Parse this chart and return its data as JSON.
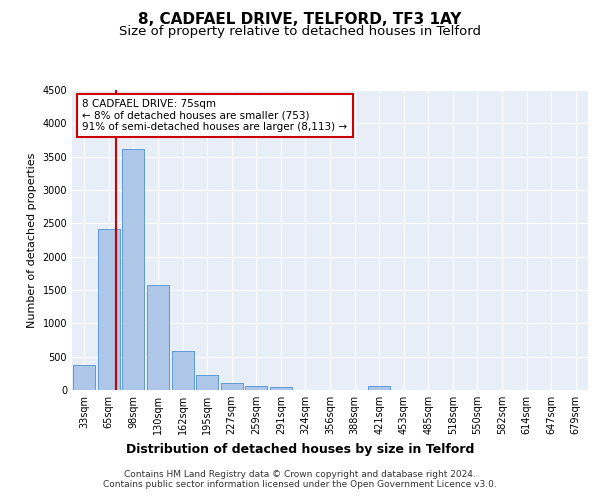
{
  "title": "8, CADFAEL DRIVE, TELFORD, TF3 1AY",
  "subtitle": "Size of property relative to detached houses in Telford",
  "xlabel": "Distribution of detached houses by size in Telford",
  "ylabel": "Number of detached properties",
  "categories": [
    "33sqm",
    "65sqm",
    "98sqm",
    "130sqm",
    "162sqm",
    "195sqm",
    "227sqm",
    "259sqm",
    "291sqm",
    "324sqm",
    "356sqm",
    "388sqm",
    "421sqm",
    "453sqm",
    "485sqm",
    "518sqm",
    "550sqm",
    "582sqm",
    "614sqm",
    "647sqm",
    "679sqm"
  ],
  "values": [
    370,
    2420,
    3620,
    1580,
    590,
    220,
    100,
    65,
    45,
    0,
    0,
    0,
    55,
    0,
    0,
    0,
    0,
    0,
    0,
    0,
    0
  ],
  "bar_color": "#aec6e8",
  "bar_edge_color": "#5b9bd5",
  "annotation_text": "8 CADFAEL DRIVE: 75sqm\n← 8% of detached houses are smaller (753)\n91% of semi-detached houses are larger (8,113) →",
  "annotation_box_color": "#ffffff",
  "annotation_box_edge_color": "#cc0000",
  "vline_color": "#cc0000",
  "vline_x": 1.3,
  "ylim": [
    0,
    4500
  ],
  "yticks": [
    0,
    500,
    1000,
    1500,
    2000,
    2500,
    3000,
    3500,
    4000,
    4500
  ],
  "background_color": "#e8eef7",
  "grid_color": "#ffffff",
  "footer_line1": "Contains HM Land Registry data © Crown copyright and database right 2024.",
  "footer_line2": "Contains public sector information licensed under the Open Government Licence v3.0.",
  "title_fontsize": 11,
  "subtitle_fontsize": 9.5,
  "xlabel_fontsize": 9,
  "ylabel_fontsize": 8,
  "tick_fontsize": 7,
  "annotation_fontsize": 7.5,
  "footer_fontsize": 6.5
}
